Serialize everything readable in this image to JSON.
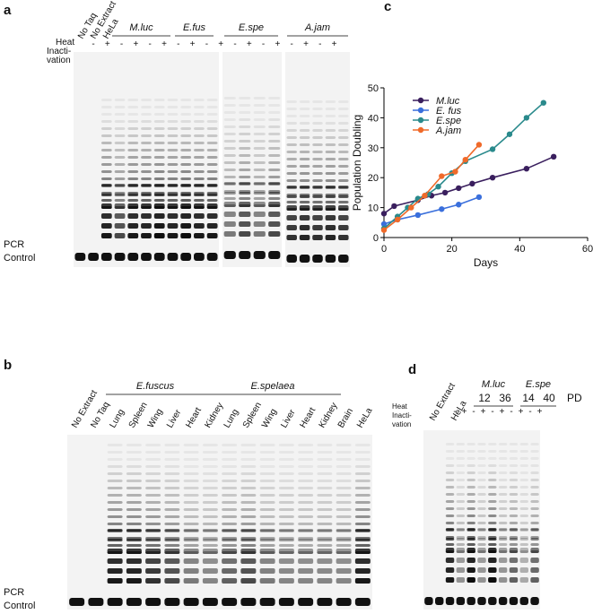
{
  "panels": [
    "a",
    "b",
    "c",
    "d"
  ],
  "gel_a": {
    "lanes": [
      "No Taq",
      "No Extract",
      "HeLa"
    ],
    "groups": [
      "M.luc",
      "E.fus",
      "E.spe",
      "A.jam"
    ],
    "heat_label": [
      "Heat",
      "Inacti-",
      "vation"
    ],
    "signs": [
      "-",
      "+",
      "-",
      "+",
      "-",
      "+",
      "-",
      "+",
      "-",
      "+",
      "-",
      "+",
      "-",
      "+",
      "-",
      "+",
      "-",
      "+"
    ],
    "control_label": [
      "PCR",
      "Control"
    ]
  },
  "gel_b": {
    "lanes": [
      "No Extract",
      "No Taq",
      "Lung",
      "Spleen",
      "Wing",
      "Liver",
      "Heart",
      "Kidney",
      "Lung",
      "Spleen",
      "Wing",
      "Liver",
      "Heart",
      "Kidney",
      "Brain",
      "HeLa"
    ],
    "groups": [
      "E.fuscus",
      "E.spelaea"
    ],
    "control_label": [
      "PCR",
      "Control"
    ]
  },
  "gel_d": {
    "lanes": [
      "No Extract",
      "HeLa"
    ],
    "groups": [
      "M.luc",
      "E.spe"
    ],
    "pd": [
      "12",
      "36",
      "14",
      "40"
    ],
    "pd_label": "PD",
    "heat_label": [
      "Heat",
      "Inacti-",
      "vation"
    ],
    "signs": [
      "-",
      "+",
      "-",
      "+",
      "-",
      "+",
      "-",
      "+",
      "-",
      "+"
    ]
  },
  "chart_data": {
    "type": "line",
    "xlabel": "Days",
    "ylabel": "Population Doubling",
    "xlim": [
      0,
      60
    ],
    "xticks": [
      0,
      20,
      40,
      60
    ],
    "ylim": [
      0,
      50
    ],
    "yticks": [
      0,
      10,
      20,
      30,
      40,
      50
    ],
    "series": [
      {
        "name": "M.luc",
        "color": "#3a1f5e",
        "x": [
          0,
          3,
          10,
          14,
          18,
          22,
          26,
          32,
          42,
          50
        ],
        "values": [
          8,
          10.5,
          12.5,
          14,
          15,
          16.5,
          18,
          20,
          23,
          27
        ]
      },
      {
        "name": "E. fus",
        "color": "#3a6fdc",
        "x": [
          0,
          4,
          10,
          17,
          22,
          28
        ],
        "values": [
          4.5,
          6,
          7.5,
          9.5,
          11,
          13.5
        ]
      },
      {
        "name": "E.spe",
        "color": "#2a8a8c",
        "x": [
          0,
          4,
          7,
          10,
          13,
          16,
          20,
          24,
          32,
          37,
          42,
          47
        ],
        "values": [
          3,
          7,
          10,
          13,
          14.5,
          17,
          21.5,
          25.5,
          29.5,
          34.5,
          40,
          45
        ]
      },
      {
        "name": "A.jam",
        "color": "#f06a2a",
        "x": [
          0,
          4,
          8,
          12,
          17,
          21,
          24,
          28
        ],
        "values": [
          2.5,
          6,
          10,
          14,
          20.5,
          22,
          26,
          31
        ]
      }
    ]
  }
}
